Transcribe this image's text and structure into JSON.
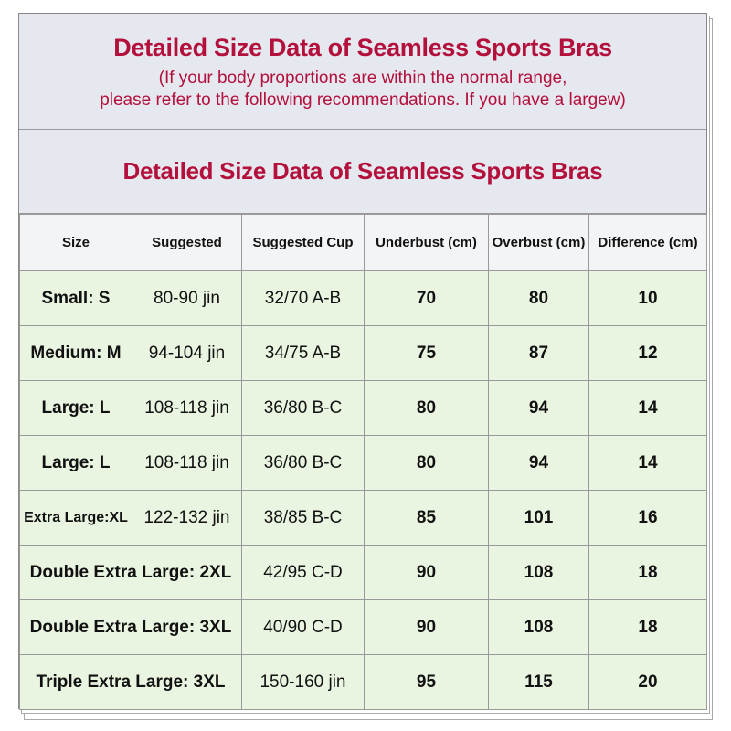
{
  "header": {
    "title": "Detailed Size Data of Seamless Sports Bras",
    "subtitle_lines": [
      "(If your body proportions are within the normal range,",
      "please refer to the following recommendations. If you have a largew)"
    ]
  },
  "table": {
    "title": "Detailed Size Data of Seamless Sports Bras",
    "columns": [
      "Size",
      "Suggested",
      "Suggested Cup",
      "Underbust (cm)",
      "Overbust (cm)",
      "Difference (cm)"
    ],
    "rows": [
      [
        "Small: S",
        "80-90 jin",
        "32/70 A-B",
        70,
        80,
        10
      ],
      [
        "Medium: M",
        "94-104 jin",
        "34/75 A-B",
        75,
        87,
        12
      ],
      [
        "Large: L",
        "108-118 jin",
        "36/80 B-C",
        80,
        94,
        14
      ],
      [
        "Large: L",
        "108-118 jin",
        "36/80 B-C",
        80,
        94,
        14
      ],
      [
        "Extra Large:XL",
        "122-132 jin",
        "38/85 B-C",
        85,
        101,
        16
      ],
      [
        "Double Extra Large: 2XL",
        "42/95 C-D",
        "",
        90,
        108,
        18
      ],
      [
        "Double Extra Large: 3XL",
        "40/90 C-D",
        "",
        90,
        108,
        18
      ],
      [
        "Triple Extra Large: 3XL",
        "150-160 jin",
        "",
        95,
        115,
        20
      ]
    ]
  }
}
